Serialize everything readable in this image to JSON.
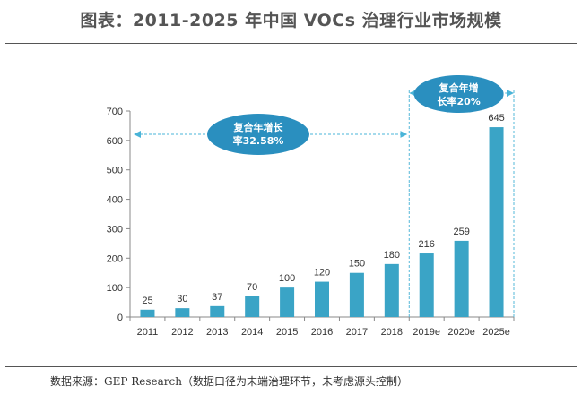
{
  "page": {
    "title": "图表：2011-2025 年中国 VOCs 治理行业市场规模",
    "source": "数据来源：GEP Research（数据口径为末端治理环节，未考虑源头控制）"
  },
  "colors": {
    "bar": "#3aa4c6",
    "bubble": "#2a8fbf",
    "arrow": "#4ab4d8",
    "divider": "#55b8d8"
  },
  "chart_data": {
    "type": "bar",
    "categories": [
      "2011",
      "2012",
      "2013",
      "2014",
      "2015",
      "2016",
      "2017",
      "2018",
      "2019e",
      "2020e",
      "2025e"
    ],
    "values": [
      25,
      30,
      37,
      70,
      100,
      120,
      150,
      180,
      216,
      259,
      645
    ],
    "ylim": [
      0,
      700
    ],
    "yticks": [
      0,
      100,
      200,
      300,
      400,
      500,
      600,
      700
    ],
    "grid": false,
    "annotations": [
      {
        "text_lines": [
          "复合年增长",
          "率32.58%"
        ],
        "span": [
          "2011",
          "2018"
        ]
      },
      {
        "text_lines": [
          "复合年增",
          "长率20%"
        ],
        "span": [
          "2019e",
          "2025e"
        ]
      }
    ]
  }
}
